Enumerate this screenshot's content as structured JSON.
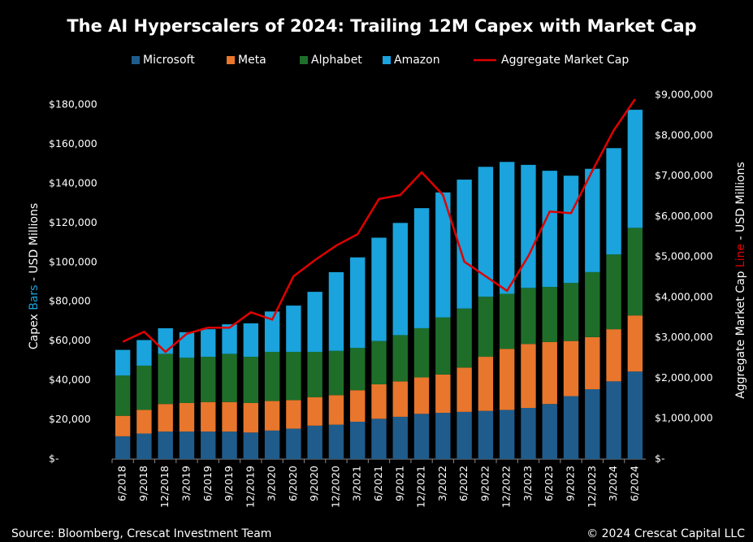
{
  "chart_data": {
    "type": "stacked_bar_line",
    "title": "The AI Hyperscalers of 2024: Trailing 12M Capex with Market Cap",
    "y_label_parts": [
      "Capex ",
      "Bars",
      " - USD Millions"
    ],
    "y2_label_parts": [
      "Aggregate Market Cap ",
      "Line",
      " - USD Millions"
    ],
    "source": "Source: Bloomberg, Crescat Investment Team",
    "copyright": "© 2024 Crescat Capital LLC",
    "categories": [
      "6/2018",
      "9/2018",
      "12/2018",
      "3/2019",
      "6/2019",
      "9/2019",
      "12/2019",
      "3/2020",
      "6/2020",
      "9/2020",
      "12/2020",
      "3/2021",
      "6/2021",
      "9/2021",
      "12/2021",
      "3/2022",
      "6/2022",
      "9/2022",
      "12/2022",
      "3/2023",
      "6/2023",
      "9/2023",
      "12/2023",
      "3/2024",
      "6/2024"
    ],
    "series": [
      {
        "name": "Microsoft",
        "color": "#1f5c8b",
        "values": [
          11600,
          13000,
          14000,
          14000,
          14000,
          14000,
          13500,
          14500,
          15500,
          17000,
          17500,
          19000,
          20500,
          21500,
          23000,
          23500,
          24000,
          24500,
          25000,
          26000,
          28000,
          32000,
          35500,
          39500,
          44500
        ]
      },
      {
        "name": "Meta",
        "color": "#e8762c",
        "values": [
          10400,
          12000,
          14000,
          14500,
          15000,
          15000,
          15000,
          15000,
          14500,
          14500,
          15000,
          16000,
          17500,
          18000,
          18500,
          19500,
          22500,
          27500,
          31000,
          32500,
          31500,
          28000,
          26500,
          26500,
          28500
        ]
      },
      {
        "name": "Alphabet",
        "color": "#1e6e2a",
        "values": [
          20500,
          22500,
          25500,
          23000,
          23000,
          24500,
          23500,
          25000,
          24500,
          23000,
          22500,
          21500,
          22000,
          23500,
          25000,
          29000,
          30000,
          30500,
          28000,
          28500,
          28000,
          29500,
          33000,
          38000,
          44500
        ]
      },
      {
        "name": "Amazon",
        "color": "#1aa3dc",
        "values": [
          13000,
          13000,
          13000,
          13000,
          14000,
          15000,
          17000,
          20500,
          23500,
          30500,
          40000,
          46000,
          52500,
          57000,
          61000,
          63500,
          65500,
          66000,
          67000,
          62500,
          59000,
          54500,
          52500,
          54000,
          60000
        ]
      },
      {
        "name": "Aggregate Market Cap",
        "color": "#e00000",
        "axis": "y2",
        "values": [
          2900000,
          3150000,
          2650000,
          3100000,
          3250000,
          3250000,
          3630000,
          3450000,
          4520000,
          4920000,
          5280000,
          5560000,
          6430000,
          6530000,
          7090000,
          6530000,
          4880000,
          4520000,
          4160000,
          5020000,
          6120000,
          6080000,
          7130000,
          8130000,
          8900000
        ]
      }
    ],
    "ylim": [
      0,
      180000
    ],
    "yticks": [
      {
        "value": 0,
        "label": "$-"
      },
      {
        "value": 20000,
        "label": "$20,000"
      },
      {
        "value": 40000,
        "label": "$40,000"
      },
      {
        "value": 60000,
        "label": "$60,000"
      },
      {
        "value": 80000,
        "label": "$80,000"
      },
      {
        "value": 100000,
        "label": "$100,000"
      },
      {
        "value": 120000,
        "label": "$120,000"
      },
      {
        "value": 140000,
        "label": "$140,000"
      },
      {
        "value": 160000,
        "label": "$160,000"
      },
      {
        "value": 180000,
        "label": "$180,000"
      }
    ],
    "y2lim": [
      0,
      9000000
    ],
    "y2ticks": [
      {
        "value": 0,
        "label": "$-"
      },
      {
        "value": 1000000,
        "label": "$1,000,000"
      },
      {
        "value": 2000000,
        "label": "$2,000,000"
      },
      {
        "value": 3000000,
        "label": "$3,000,000"
      },
      {
        "value": 4000000,
        "label": "$4,000,000"
      },
      {
        "value": 5000000,
        "label": "$5,000,000"
      },
      {
        "value": 6000000,
        "label": "$6,000,000"
      },
      {
        "value": 7000000,
        "label": "$7,000,000"
      },
      {
        "value": 8000000,
        "label": "$8,000,000"
      },
      {
        "value": 9000000,
        "label": "$9,000,000"
      }
    ]
  }
}
